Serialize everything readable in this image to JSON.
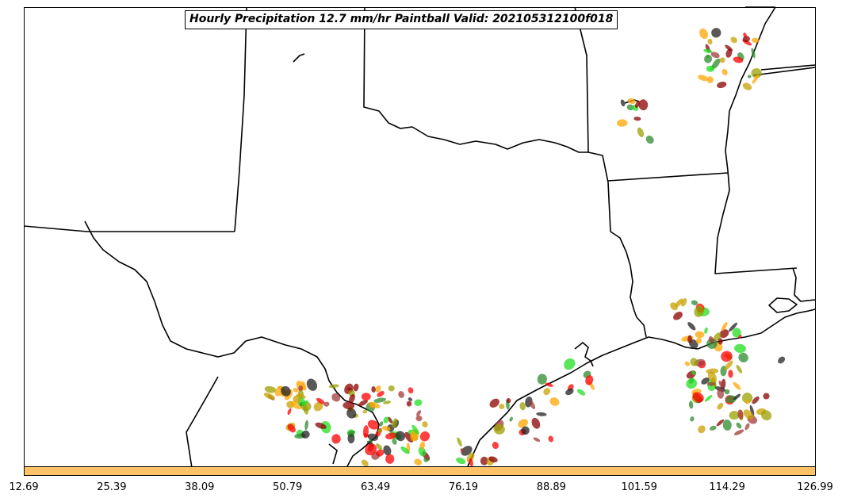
{
  "title": "Hourly Precipitation 12.7 mm/hr Paintball Valid: 202105312100f018",
  "colorbar": {
    "color": "#ffc266",
    "ticks": [
      "12.69",
      "25.39",
      "38.09",
      "50.79",
      "63.49",
      "76.19",
      "88.89",
      "101.59",
      "114.29",
      "126.99"
    ]
  },
  "paintball_colors": [
    "#ff0000",
    "#ffa500",
    "#2e8b2e",
    "#8b0000",
    "#9aa000",
    "#a33a3a",
    "#222222",
    "#22dd22",
    "#c8a000"
  ]
}
